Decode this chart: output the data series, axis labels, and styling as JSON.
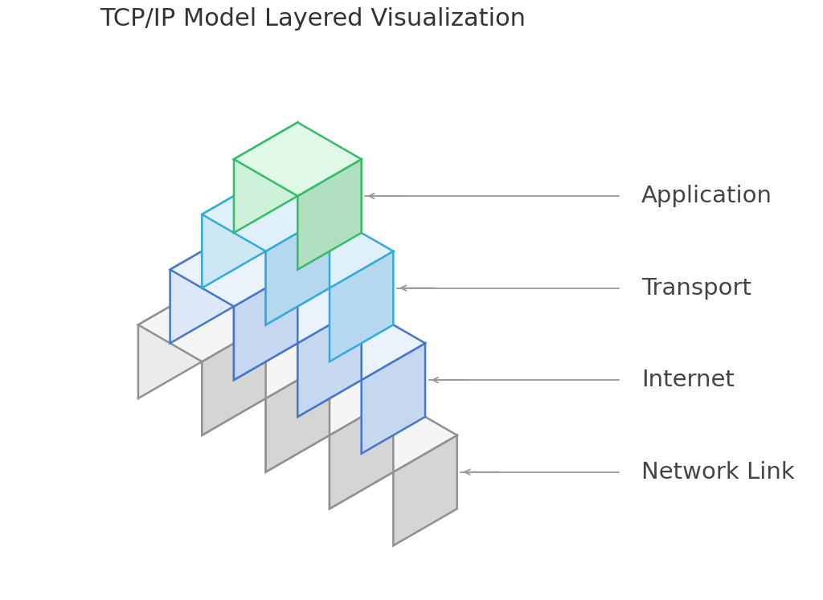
{
  "title": "TCP/IP Model Layered Visualization",
  "title_fontsize": 22,
  "background_color": "#ffffff",
  "layers": [
    {
      "name": "Network Link",
      "n_cubes": 4,
      "left_color": "#ebebeb",
      "right_color": "#d5d5d5",
      "top_color": "#f5f5f5",
      "edge_color": "#909090"
    },
    {
      "name": "Internet",
      "n_cubes": 3,
      "left_color": "#dde8f8",
      "right_color": "#c5d8f0",
      "top_color": "#eaf2fc",
      "edge_color": "#4477cc"
    },
    {
      "name": "Transport",
      "n_cubes": 2,
      "left_color": "#cce8f5",
      "right_color": "#b5d8ee",
      "top_color": "#dff0fa",
      "edge_color": "#33aadd"
    },
    {
      "name": "Application",
      "n_cubes": 1,
      "left_color": "#ccf0d8",
      "right_color": "#b0e0c0",
      "top_color": "#e0f8e8",
      "edge_color": "#33bb66"
    }
  ],
  "annotation_color": "#999999",
  "arrow_color": "#888888",
  "label_fontsize": 21,
  "label_color": "#444444",
  "cube_lw": 1.8,
  "figsize": [
    10.24,
    7.47
  ],
  "dpi": 100
}
